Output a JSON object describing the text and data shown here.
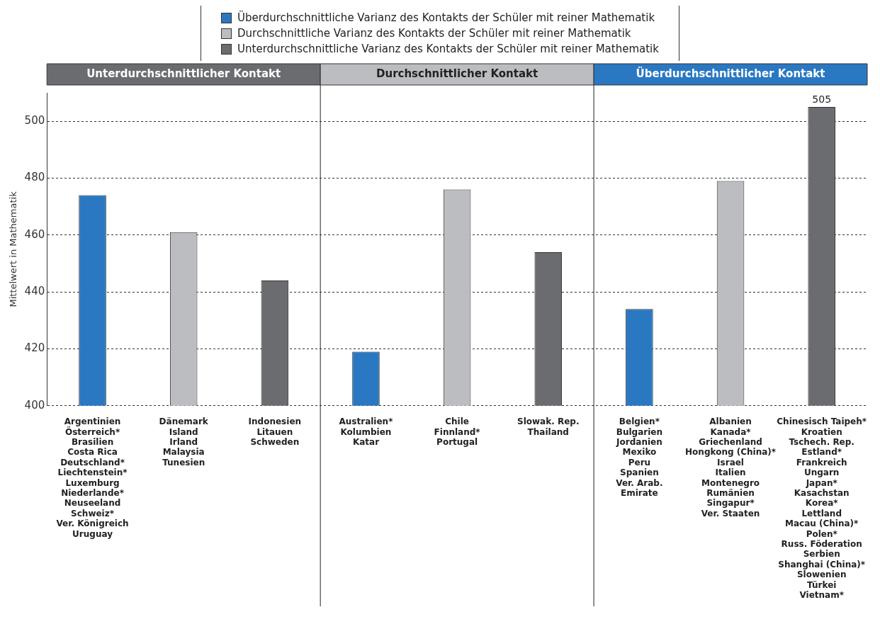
{
  "chart_data": {
    "type": "bar",
    "ylabel": "Mittelwert in Mathematik",
    "categories": [
      "Argentinien\nÖsterreich*\nBrasilien\nCosta Rica\nDeutschland*\nLiechtenstein*\nLuxemburg\nNiederlande*\nNeuseeland\nSchweiz*\nVer. Königreich\nUruguay",
      "Dänemark\nIsland\nIrland\nMalaysia\nTunesien",
      "Indonesien\nLitauen\nSchweden",
      "Australien*\nKolumbien\nKatar",
      "Chile\nFinnland*\nPortugal",
      "Slowak. Rep.\nThailand",
      "Belgien*\nBulgarien\nJordanien\nMexiko\nPeru\nSpanien\nVer. Arab.\nEmirate",
      "Albanien\nKanada*\nGriechenland\nHongkong (China)*\nIsrael\nItalien\nMontenegro\nRumänien\nSingapur*\nVer. Staaten",
      "Chinesisch Taipeh*\nKroatien\nTschech. Rep.\nEstland*\nFrankreich\nUngarn\nJapan*\nKasachstan\nKorea*\nLettland\nMacau (China)*\nPolen*\nRuss. Föderation\nSerbien\nShanghai (China)*\nSlowenien\nTürkei\nVietnam*"
    ],
    "series": [
      {
        "name": "Überdurchschnittliche Varianz des Kontakts der Schüler mit reiner Mathematik",
        "color": "#2a78c2",
        "values": [
          474,
          null,
          null,
          419,
          null,
          null,
          434,
          null,
          null
        ]
      },
      {
        "name": "Durchschnittliche Varianz des Kontakts der Schüler mit reiner Mathematik",
        "color": "#bcbdc0",
        "values": [
          null,
          461,
          null,
          null,
          476,
          null,
          null,
          479,
          null
        ]
      },
      {
        "name": "Unterdurchschnittliche Varianz des Kontakts der Schüler mit reiner Mathematik",
        "color": "#6b6c70",
        "values": [
          null,
          null,
          444,
          null,
          null,
          454,
          null,
          null,
          505
        ],
        "value_labels": [
          null,
          null,
          null,
          null,
          null,
          null,
          null,
          null,
          "505"
        ]
      }
    ],
    "annotations": [
      "Unterdurchschnittlicher Kontakt",
      "Durchschnittlicher Kontakt",
      "Überdurchschnittlicher Kontakt"
    ],
    "ylim": [
      400,
      510
    ],
    "yticks": [
      400,
      420,
      440,
      460,
      480,
      500
    ],
    "grid": "y",
    "legend": "top"
  }
}
